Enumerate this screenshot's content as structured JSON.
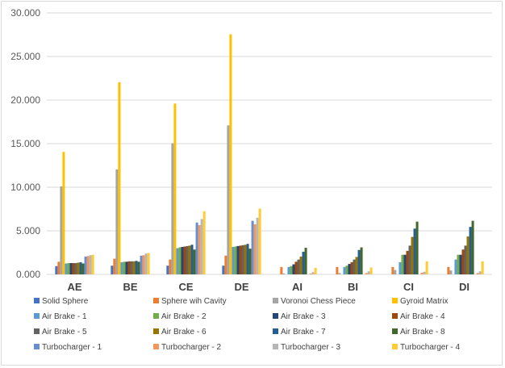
{
  "chart_data": {
    "type": "bar",
    "title": "",
    "xlabel": "",
    "ylabel": "",
    "ylim": [
      0,
      30000
    ],
    "yticks": [
      0,
      5000,
      10000,
      15000,
      20000,
      25000,
      30000
    ],
    "ytick_labels": [
      "0.000",
      "5.000",
      "10.000",
      "15.000",
      "20.000",
      "25.000",
      "30.000"
    ],
    "grid": true,
    "legend_position": "bottom",
    "categories": [
      "AE",
      "BE",
      "CE",
      "DE",
      "AI",
      "BI",
      "CI",
      "DI"
    ],
    "series": [
      {
        "name": "Solid Sphere",
        "color": "#4472C4",
        "values": [
          950,
          1000,
          1000,
          1000,
          0,
          0,
          0,
          0
        ]
      },
      {
        "name": "Sphere wih Cavity",
        "color": "#ED7D31",
        "values": [
          1450,
          1800,
          1700,
          2150,
          850,
          850,
          850,
          850
        ]
      },
      {
        "name": "Voronoi Chess Piece",
        "color": "#A5A5A5",
        "values": [
          10100,
          12050,
          15050,
          17100,
          100,
          150,
          500,
          450
        ]
      },
      {
        "name": "Gyroid Matrix",
        "color": "#FFC000",
        "values": [
          14050,
          22050,
          19600,
          27550,
          0,
          0,
          0,
          0
        ]
      },
      {
        "name": "Air Brake - 1",
        "color": "#5B9BD5",
        "values": [
          1250,
          1400,
          3000,
          3150,
          850,
          850,
          1400,
          1700
        ]
      },
      {
        "name": "Air Brake - 2",
        "color": "#70AD47",
        "values": [
          1300,
          1450,
          3100,
          3200,
          950,
          1000,
          2250,
          2250
        ]
      },
      {
        "name": "Air Brake - 3",
        "color": "#264478",
        "values": [
          1300,
          1450,
          3150,
          3250,
          1150,
          1200,
          2250,
          2250
        ]
      },
      {
        "name": "Air Brake - 4",
        "color": "#9E480E",
        "values": [
          1300,
          1500,
          3200,
          3300,
          1450,
          1400,
          2700,
          2850
        ]
      },
      {
        "name": "Air Brake - 5",
        "color": "#636363",
        "values": [
          1300,
          1500,
          3250,
          3350,
          1700,
          1700,
          3300,
          3300
        ]
      },
      {
        "name": "Air Brake - 6",
        "color": "#997300",
        "values": [
          1350,
          1500,
          3300,
          3400,
          2050,
          2000,
          4300,
          4350
        ]
      },
      {
        "name": "Air Brake - 7",
        "color": "#255E91",
        "values": [
          1400,
          1550,
          3400,
          3500,
          2600,
          2800,
          5250,
          5450
        ]
      },
      {
        "name": "Air Brake - 8",
        "color": "#43682B",
        "values": [
          1250,
          1450,
          2850,
          2950,
          3050,
          3100,
          6050,
          6150
        ]
      },
      {
        "name": "Turbocharger - 1",
        "color": "#698ED0",
        "values": [
          2050,
          2150,
          5950,
          6150,
          0,
          0,
          0,
          0
        ]
      },
      {
        "name": "Turbocharger - 2",
        "color": "#F1975A",
        "values": [
          2100,
          2200,
          5650,
          5750,
          100,
          150,
          200,
          150
        ]
      },
      {
        "name": "Turbocharger - 3",
        "color": "#B7B7B7",
        "values": [
          2200,
          2400,
          6350,
          6500,
          250,
          350,
          300,
          350
        ]
      },
      {
        "name": "Turbocharger - 4",
        "color": "#FFCD33",
        "values": [
          2250,
          2450,
          7250,
          7550,
          750,
          800,
          1500,
          1500
        ]
      }
    ]
  }
}
